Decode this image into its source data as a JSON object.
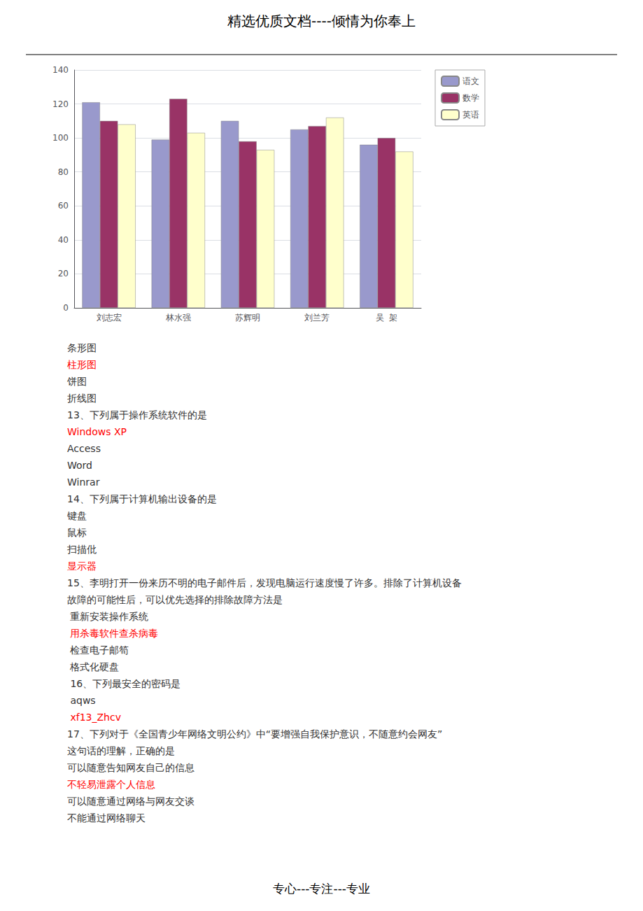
{
  "chart_data": {
    "type": "bar",
    "title": "精选优质文档----倾情为你奉上",
    "footer": "专心---专注---专业",
    "categories": [
      "刘志宏",
      "林水强",
      "苏辉明",
      "刘兰芳",
      "吴  架"
    ],
    "series": [
      {
        "name": "语文",
        "color": "#9999cc",
        "values": [
          121,
          99,
          110,
          105,
          96
        ]
      },
      {
        "name": "数学",
        "color": "#993366",
        "values": [
          110,
          123,
          98,
          107,
          100
        ]
      },
      {
        "name": "英语",
        "color": "#ffffcc",
        "values": [
          108,
          103,
          93,
          112,
          92
        ]
      }
    ],
    "ylim": [
      0,
      140
    ],
    "yticks": [
      0,
      20,
      40,
      60,
      80,
      100,
      120,
      140
    ],
    "grid": true,
    "legend": "right",
    "annotations": [
      {
        "text": "条形图",
        "color": "#333333"
      },
      {
        "text": "柱形图",
        "color": "#ff0000"
      },
      {
        "text": "饼图",
        "color": "#333333"
      },
      {
        "text": "折线图",
        "color": "#333333"
      },
      {
        "text": "13、下列属于操作系统软件的是",
        "color": "#333333"
      },
      {
        "text": "Windows XP",
        "color": "#ff0000"
      },
      {
        "text": "Access",
        "color": "#333333"
      },
      {
        "text": "Word",
        "color": "#333333"
      },
      {
        "text": "Winrar",
        "color": "#333333"
      },
      {
        "text": "14、下列属于计算机输出设备的是",
        "color": "#333333"
      },
      {
        "text": "键盘",
        "color": "#333333"
      },
      {
        "text": "鼠标",
        "color": "#333333"
      },
      {
        "text": "扫描仳",
        "color": "#333333"
      },
      {
        "text": "显示器",
        "color": "#ff0000"
      },
      {
        "text": "15、李明打开一份来历不明的电子邮件后，发现电脑运行速度慢了许多。排除了计算机设备",
        "color": "#333333"
      },
      {
        "text": "故障的可能性后，可以优先选择的排除故障方法是",
        "color": "#333333"
      },
      {
        "text": " 重新安装操作系统",
        "color": "#333333"
      },
      {
        "text": " 用杀毒软件查杀病毒",
        "color": "#ff0000"
      },
      {
        "text": " 检查电子邮笱",
        "color": "#333333"
      },
      {
        "text": " 格式化硬盘",
        "color": "#333333"
      },
      {
        "text": " 16、下列最安全的密码是",
        "color": "#333333"
      },
      {
        "text": " aqws",
        "color": "#333333"
      },
      {
        "text": " xf13_Zhcv",
        "color": "#ff0000"
      },
      {
        "text": "17、下列对于《全国青少年网络文明公约》中“要增强自我保护意识，不随意约会网友”",
        "color": "#333333"
      },
      {
        "text": "这句话的理解，正确的是",
        "color": "#333333"
      },
      {
        "text": "可以随意告知网友自己的信息",
        "color": "#333333"
      },
      {
        "text": "不轻易泄露个人信息",
        "color": "#ff0000"
      },
      {
        "text": "可以随意通过网络与网友交谈",
        "color": "#333333"
      },
      {
        "text": "不能通过网络聊天",
        "color": "#333333"
      }
    ]
  }
}
